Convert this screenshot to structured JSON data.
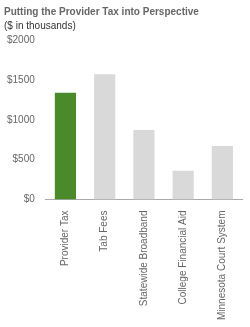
{
  "chart_data": {
    "type": "bar",
    "title": "Putting the Provider Tax into Perspective",
    "subtitle": "($ in thousands)",
    "categories": [
      "Provider Tax",
      "Tab Fees",
      "Statewide Broadband",
      "College Financial Aid",
      "Minnesota Court System"
    ],
    "values": [
      1340,
      1570,
      870,
      360,
      670
    ],
    "colors": [
      "#4a8a2a",
      "#d9d9d9",
      "#d9d9d9",
      "#d9d9d9",
      "#d9d9d9"
    ],
    "ylim": [
      0,
      2000
    ],
    "yticks": [
      {
        "value": 0,
        "label": "$0"
      },
      {
        "value": 500,
        "label": "$500"
      },
      {
        "value": 1000,
        "label": "$1000"
      },
      {
        "value": 1500,
        "label": "$1500"
      },
      {
        "value": 2000,
        "label": "$2000"
      }
    ],
    "grid": false
  }
}
